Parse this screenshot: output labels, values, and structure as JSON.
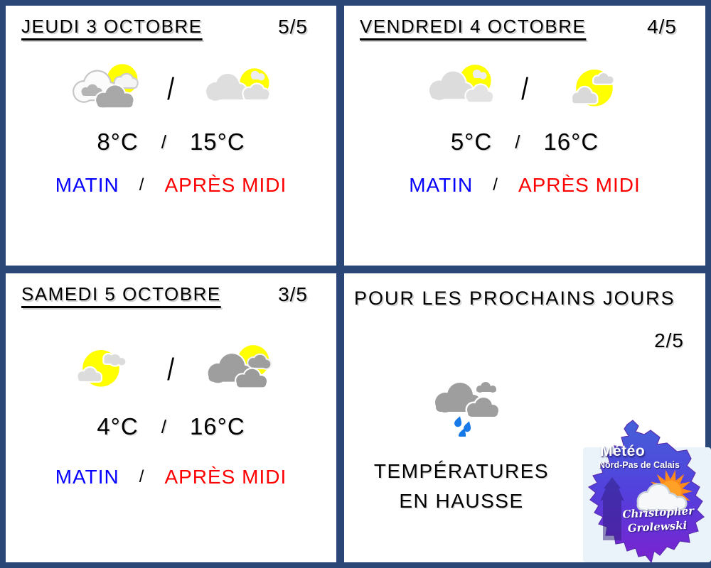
{
  "separators": {
    "slash": "/"
  },
  "colors": {
    "frame_border": "#2b4778",
    "morning_label": "#0600ff",
    "afternoon_label": "#fe0000",
    "sun": "#ffff00",
    "cloud_light": "#dcdcdc",
    "cloud_dark": "#9e9e9e",
    "rain_drop": "#1779e8",
    "logo_map_top": "#4461d8",
    "logo_map_bottom": "#7a22cf",
    "logo_sun": "#ff9d26"
  },
  "panels": [
    {
      "title": "JEUDI 3 OCTOBRE",
      "score": "5/5",
      "morning_icon": "sun-behind-white-and-gray-clouds",
      "afternoon_icon": "sun-with-light-clouds",
      "temp_morning": "8°C",
      "temp_afternoon": "15°C",
      "morning_label": "MATIN",
      "afternoon_label": "APRÈS MIDI"
    },
    {
      "title": "VENDREDI 4 OCTOBRE",
      "score": "4/5",
      "morning_icon": "sun-behind-light-clouds",
      "afternoon_icon": "sun-with-small-clouds",
      "temp_morning": "5°C",
      "temp_afternoon": "16°C",
      "morning_label": "MATIN",
      "afternoon_label": "APRÈS MIDI"
    },
    {
      "title": "SAMEDI 5 OCTOBRE",
      "score": "3/5",
      "morning_icon": "sun-with-small-light-clouds",
      "afternoon_icon": "sun-behind-gray-clouds",
      "temp_morning": "4°C",
      "temp_afternoon": "16°C",
      "morning_label": "MATIN",
      "afternoon_label": "APRÈS MIDI"
    }
  ],
  "outlook": {
    "title": "POUR LES PROCHAINS JOURS",
    "score": "2/5",
    "icon": "rain-clouds",
    "message_line1": "TEMPÉRATURES",
    "message_line2": "EN HAUSSE"
  },
  "logo": {
    "title": "Météo",
    "region": "Nord-Pas de Calais",
    "author_line1": "Christopher",
    "author_line2": "Grolewski"
  }
}
